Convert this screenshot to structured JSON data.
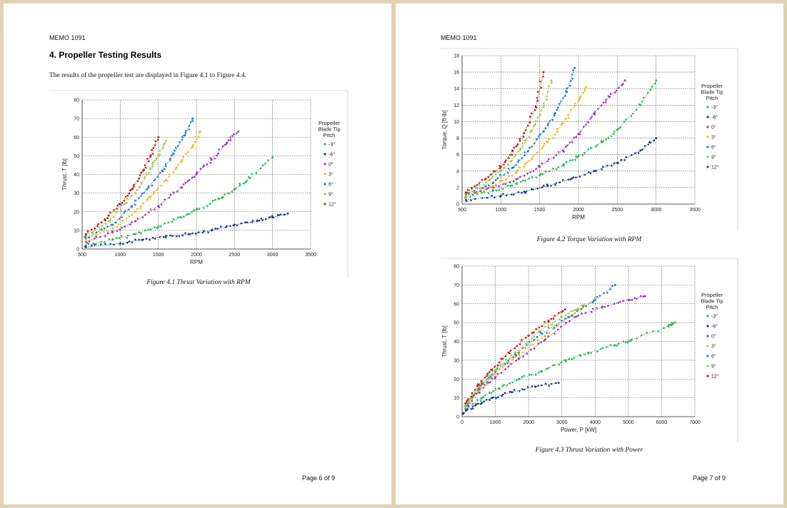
{
  "page1": {
    "memo": "MEMO 1091",
    "heading": "4.  Propeller Testing Results",
    "intro": "The results of the propeller test are displayed in Figure 4.1 to Figure 4.4.",
    "caption": "Figure 4.1 Thrust Variation with RPM",
    "page_number": "Page 6 of 9"
  },
  "page2": {
    "memo": "MEMO 1091",
    "caption_torque": "Figure 4.2 Torque Variation with RPM",
    "caption_power": "Figure 4.3 Thrust Variation with Power",
    "page_number": "Page 7 of 9"
  },
  "series_colors": {
    "-3°": "#2fb75a",
    "-6°": "#1f3c88",
    "0°": "#8e3fb5",
    "3°": "#f4b820",
    "6°": "#1e7fd0",
    "9°": "#9acd4a",
    "12°": "#c0201c"
  },
  "chart_data": [
    {
      "id": "thrust_rpm",
      "type": "scatter",
      "xlabel": "RPM",
      "ylabel": "Thrust, T [lb]",
      "xlim": [
        500,
        3500
      ],
      "ylim": [
        0,
        80
      ],
      "xticks": [
        500,
        1000,
        1500,
        2000,
        2500,
        3000,
        3500
      ],
      "yticks": [
        0,
        10,
        20,
        30,
        40,
        50,
        60,
        70,
        80
      ],
      "grid": true,
      "legend_title": "Propeller Blade Tip Pitch",
      "legend_position": "right",
      "series": [
        {
          "name": "-3°",
          "x": [
            550,
            900,
            1200,
            1500,
            1800,
            2000,
            2300,
            2500,
            2700,
            3000
          ],
          "y": [
            2,
            5,
            8,
            12,
            17,
            21,
            27,
            32,
            38,
            49
          ]
        },
        {
          "name": "-6°",
          "x": [
            550,
            1000,
            1300,
            1600,
            1900,
            2200,
            2500,
            2800,
            3000,
            3200
          ],
          "y": [
            1,
            3,
            5,
            7,
            8,
            10,
            13,
            15,
            17,
            19
          ]
        },
        {
          "name": "0°",
          "x": [
            550,
            900,
            1200,
            1500,
            1800,
            2000,
            2200,
            2400,
            2550
          ],
          "y": [
            4,
            9,
            15,
            23,
            33,
            40,
            48,
            57,
            63
          ]
        },
        {
          "name": "3°",
          "x": [
            550,
            900,
            1200,
            1400,
            1600,
            1800,
            1950,
            2050
          ],
          "y": [
            5,
            11,
            20,
            28,
            37,
            47,
            55,
            63
          ]
        },
        {
          "name": "6°",
          "x": [
            550,
            900,
            1150,
            1350,
            1550,
            1700,
            1850,
            1950
          ],
          "y": [
            6,
            13,
            23,
            32,
            42,
            51,
            61,
            70
          ]
        },
        {
          "name": "9°",
          "x": [
            550,
            850,
            1050,
            1250,
            1400,
            1500,
            1600
          ],
          "y": [
            7,
            15,
            24,
            33,
            43,
            50,
            58
          ]
        },
        {
          "name": "12°",
          "x": [
            550,
            800,
            1000,
            1150,
            1300,
            1400,
            1500
          ],
          "y": [
            8,
            16,
            24,
            32,
            42,
            50,
            60
          ]
        }
      ]
    },
    {
      "id": "torque_rpm",
      "type": "scatter",
      "xlabel": "RPM",
      "ylabel": "Torque, Q [ft-lb]",
      "xlim": [
        500,
        3500
      ],
      "ylim": [
        0,
        18
      ],
      "xticks": [
        500,
        1000,
        1500,
        2000,
        2500,
        3000,
        3500
      ],
      "yticks": [
        0,
        2,
        4,
        6,
        8,
        10,
        12,
        14,
        16,
        18
      ],
      "grid": true,
      "legend_title": "Propeller Blade Tip Pitch",
      "legend_position": "right",
      "series": [
        {
          "name": "-3°",
          "x": [
            550,
            900,
            1200,
            1500,
            1800,
            2000,
            2300,
            2500,
            2800,
            3000
          ],
          "y": [
            0.8,
            1.6,
            2.5,
            3.5,
            4.7,
            5.8,
            7.5,
            9,
            12,
            15
          ]
        },
        {
          "name": "-6°",
          "x": [
            550,
            1000,
            1300,
            1600,
            1900,
            2200,
            2500,
            2800,
            3000
          ],
          "y": [
            0.5,
            1,
            1.5,
            2.2,
            3,
            4,
            5,
            6.5,
            8
          ]
        },
        {
          "name": "0°",
          "x": [
            550,
            900,
            1200,
            1500,
            1800,
            2000,
            2200,
            2400,
            2600
          ],
          "y": [
            1,
            2,
            3,
            4.5,
            6.5,
            8.5,
            11,
            13,
            15
          ]
        },
        {
          "name": "3°",
          "x": [
            550,
            900,
            1200,
            1400,
            1600,
            1800,
            2000,
            2100
          ],
          "y": [
            1.1,
            2.2,
            3.8,
            5.5,
            7.5,
            9.8,
            12.5,
            14.2
          ]
        },
        {
          "name": "6°",
          "x": [
            550,
            900,
            1150,
            1350,
            1550,
            1700,
            1850,
            1950
          ],
          "y": [
            1.2,
            2.6,
            4.4,
            6.4,
            8.8,
            11,
            13.6,
            16.5
          ]
        },
        {
          "name": "9°",
          "x": [
            550,
            850,
            1050,
            1250,
            1400,
            1550,
            1650
          ],
          "y": [
            1.3,
            2.9,
            4.4,
            6.6,
            8.9,
            11.8,
            15
          ]
        },
        {
          "name": "12°",
          "x": [
            550,
            800,
            1000,
            1150,
            1300,
            1450,
            1550
          ],
          "y": [
            1.4,
            3,
            4.5,
            6.4,
            8.6,
            11.8,
            16
          ]
        }
      ]
    },
    {
      "id": "thrust_power",
      "type": "scatter",
      "xlabel": "Power, P [kW]",
      "ylabel": "Thrust, T [lb]",
      "xlim": [
        0,
        7000
      ],
      "ylim": [
        0,
        80
      ],
      "xticks": [
        0,
        1000,
        2000,
        3000,
        4000,
        5000,
        6000,
        7000
      ],
      "yticks": [
        0,
        10,
        20,
        30,
        40,
        50,
        60,
        70,
        80
      ],
      "grid": true,
      "legend_title": "Propeller Blade Tip Pitch",
      "legend_position": "right",
      "series": [
        {
          "name": "-3°",
          "x": [
            100,
            600,
            1100,
            1700,
            2400,
            3100,
            3800,
            4600,
            5100,
            6200,
            6400
          ],
          "y": [
            4,
            10,
            15,
            20,
            24,
            30,
            34,
            38,
            41,
            48,
            50
          ]
        },
        {
          "name": "-6°",
          "x": [
            50,
            400,
            900,
            1500,
            2200,
            2900
          ],
          "y": [
            2,
            6,
            10,
            13,
            16,
            18
          ]
        },
        {
          "name": "0°",
          "x": [
            100,
            500,
            1000,
            1700,
            2500,
            3400,
            4200,
            5000,
            5500
          ],
          "y": [
            5,
            13,
            21,
            31,
            41,
            53,
            58,
            62,
            64
          ]
        },
        {
          "name": "3°",
          "x": [
            100,
            500,
            1000,
            1700,
            2500,
            3300,
            4000
          ],
          "y": [
            5,
            14,
            23,
            33,
            43,
            54,
            63
          ]
        },
        {
          "name": "6°",
          "x": [
            100,
            500,
            1000,
            1600,
            2400,
            3200,
            4000,
            4600
          ],
          "y": [
            6,
            15,
            24,
            33,
            44,
            53,
            62,
            70
          ]
        },
        {
          "name": "9°",
          "x": [
            100,
            500,
            1000,
            1600,
            2300,
            3000,
            3600
          ],
          "y": [
            6,
            16,
            25,
            34,
            45,
            53,
            59
          ]
        },
        {
          "name": "12°",
          "x": [
            100,
            500,
            900,
            1400,
            2000,
            2600,
            3100
          ],
          "y": [
            7,
            17,
            25,
            34,
            43,
            51,
            57
          ]
        }
      ]
    }
  ]
}
